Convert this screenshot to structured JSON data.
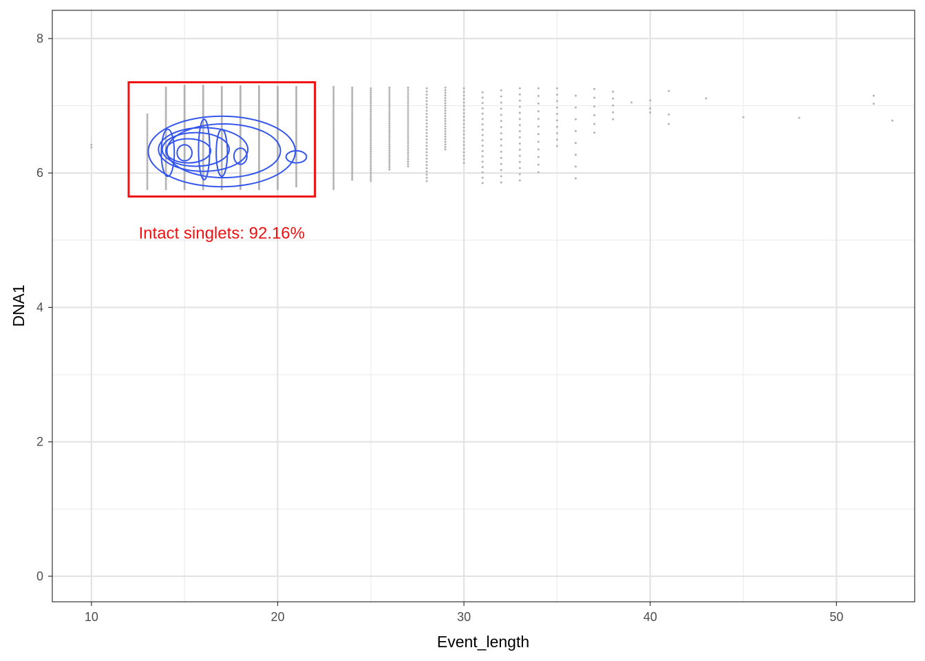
{
  "chart_data": {
    "type": "scatter",
    "xlabel": "Event_length",
    "ylabel": "DNA1",
    "xlim": [
      7.9,
      54.2
    ],
    "ylim": [
      -0.38,
      8.42
    ],
    "x_ticks": [
      10,
      20,
      30,
      40,
      50
    ],
    "y_ticks": [
      0,
      2,
      4,
      6,
      8
    ],
    "grid": true,
    "point_color": "#b3b3b3",
    "contour_color": "#3355ee",
    "gate": {
      "label": "Intact singlets: 92.16%",
      "color": "#ee1111",
      "x_range": [
        12,
        22
      ],
      "y_range": [
        5.65,
        7.35
      ]
    },
    "columns": [
      {
        "x": 10,
        "ymin": 6.38,
        "ymax": 6.42,
        "n": 2
      },
      {
        "x": 13,
        "ymin": 5.76,
        "ymax": 6.87,
        "n": 40
      },
      {
        "x": 14,
        "ymin": 5.76,
        "ymax": 7.27,
        "n": 60
      },
      {
        "x": 15,
        "ymin": 5.76,
        "ymax": 7.3,
        "n": 70
      },
      {
        "x": 16,
        "ymin": 5.76,
        "ymax": 7.3,
        "n": 70
      },
      {
        "x": 17,
        "ymin": 5.76,
        "ymax": 7.28,
        "n": 70
      },
      {
        "x": 18,
        "ymin": 5.76,
        "ymax": 7.29,
        "n": 70
      },
      {
        "x": 19,
        "ymin": 5.76,
        "ymax": 7.29,
        "n": 70
      },
      {
        "x": 20,
        "ymin": 5.76,
        "ymax": 7.28,
        "n": 70
      },
      {
        "x": 21,
        "ymin": 5.8,
        "ymax": 7.28,
        "n": 60
      },
      {
        "x": 23,
        "ymin": 5.76,
        "ymax": 7.28,
        "n": 55
      },
      {
        "x": 24,
        "ymin": 5.9,
        "ymax": 7.27,
        "n": 50
      },
      {
        "x": 25,
        "ymin": 5.88,
        "ymax": 7.26,
        "n": 45
      },
      {
        "x": 26,
        "ymin": 6.05,
        "ymax": 7.27,
        "n": 40
      },
      {
        "x": 27,
        "ymin": 6.1,
        "ymax": 7.27,
        "n": 35
      },
      {
        "x": 28,
        "ymin": 5.88,
        "ymax": 7.26,
        "n": 30
      },
      {
        "x": 29,
        "ymin": 6.35,
        "ymax": 7.27,
        "n": 25
      },
      {
        "x": 30,
        "ymin": 6.15,
        "ymax": 7.26,
        "n": 22
      },
      {
        "x": 31,
        "ymin": 5.85,
        "ymax": 7.2,
        "n": 18
      },
      {
        "x": 32,
        "ymin": 5.86,
        "ymax": 7.23,
        "n": 16
      },
      {
        "x": 33,
        "ymin": 5.89,
        "ymax": 7.26,
        "n": 16
      },
      {
        "x": 34,
        "ymin": 6.01,
        "ymax": 7.26,
        "n": 12
      },
      {
        "x": 35,
        "ymin": 6.4,
        "ymax": 7.26,
        "n": 10
      },
      {
        "x": 36,
        "ymin": 5.92,
        "ymax": 7.15,
        "n": 8
      },
      {
        "x": 37,
        "ymin": 6.6,
        "ymax": 7.25,
        "n": 6
      },
      {
        "x": 38,
        "ymin": 6.8,
        "ymax": 7.21,
        "n": 5
      }
    ],
    "points": [
      {
        "x": 39,
        "y": 7.05
      },
      {
        "x": 40,
        "y": 7.08
      },
      {
        "x": 40,
        "y": 6.96
      },
      {
        "x": 40,
        "y": 6.9
      },
      {
        "x": 41,
        "y": 7.22
      },
      {
        "x": 41,
        "y": 6.87
      },
      {
        "x": 41,
        "y": 6.73
      },
      {
        "x": 43,
        "y": 7.11
      },
      {
        "x": 45,
        "y": 6.83
      },
      {
        "x": 48,
        "y": 6.82
      },
      {
        "x": 52,
        "y": 7.15
      },
      {
        "x": 52,
        "y": 7.03
      },
      {
        "x": 53,
        "y": 6.78
      }
    ],
    "contours": [
      {
        "cx": 17.0,
        "cy": 6.32,
        "rx": 7.9,
        "ry": 1.05
      },
      {
        "cx": 17.1,
        "cy": 6.33,
        "rx": 6.1,
        "ry": 0.8
      },
      {
        "cx": 16.0,
        "cy": 6.35,
        "rx": 4.8,
        "ry": 0.65
      },
      {
        "cx": 15.6,
        "cy": 6.35,
        "rx": 3.6,
        "ry": 0.5
      },
      {
        "cx": 15.2,
        "cy": 6.33,
        "rx": 2.4,
        "ry": 0.36
      }
    ],
    "peaks": [
      {
        "cx": 14.1,
        "cy": 6.3,
        "rx": 0.35,
        "ry": 0.35
      },
      {
        "cx": 15.0,
        "cy": 6.3,
        "rx": 0.4,
        "ry": 0.12
      },
      {
        "cx": 16.05,
        "cy": 6.35,
        "rx": 0.3,
        "ry": 0.45
      },
      {
        "cx": 17.0,
        "cy": 6.3,
        "rx": 0.3,
        "ry": 0.35
      },
      {
        "cx": 18.0,
        "cy": 6.25,
        "rx": 0.35,
        "ry": 0.12
      },
      {
        "cx": 21.0,
        "cy": 6.24,
        "rx": 0.55,
        "ry": 0.09
      }
    ]
  }
}
